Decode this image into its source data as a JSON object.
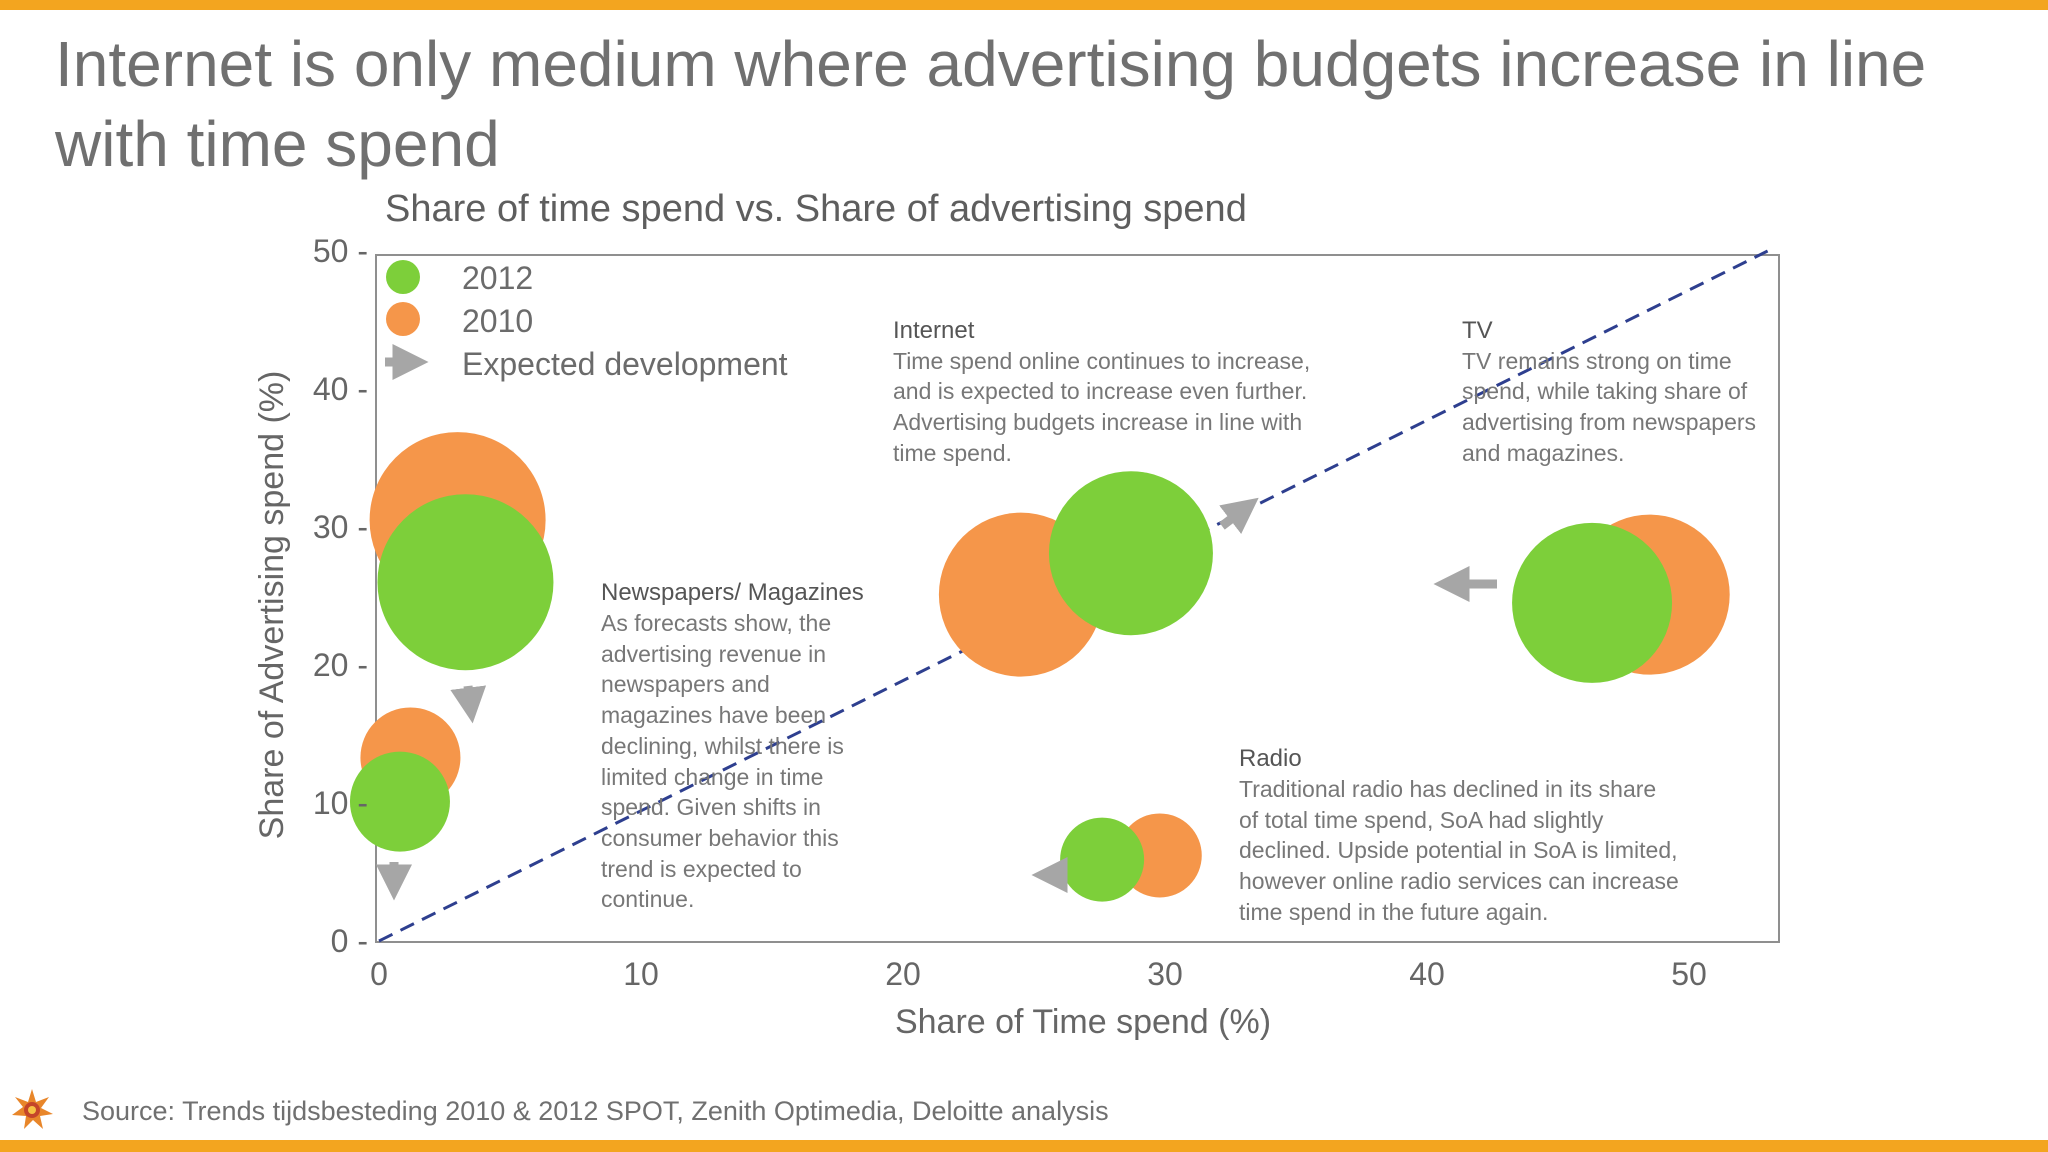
{
  "slide": {
    "title": "Internet is only medium where advertising budgets increase in line with time spend",
    "source": "Source: Trends tijdsbesteding 2010 & 2012 SPOT, Zenith Optimedia, Deloitte analysis"
  },
  "colors": {
    "accent_bar": "#f3a51f",
    "series_2012": "#7dcf3a",
    "series_2010": "#f5964a",
    "arrow": "#a6a6a6",
    "trend_line": "#2e3f8f"
  },
  "chart_data": {
    "type": "scatter",
    "title": "Share of time spend vs. Share of advertising spend",
    "xlabel": "Share of Time spend (%)",
    "ylabel": "Share of Advertising spend (%)",
    "xlim": [
      0,
      53
    ],
    "ylim": [
      0,
      50
    ],
    "x_ticks": [
      "0",
      "10",
      "20",
      "30",
      "40",
      "50"
    ],
    "y_ticks": [
      "0 -",
      "10 -",
      "20 -",
      "30 -",
      "40 -",
      "50 -"
    ],
    "grid": false,
    "legend_position": "top-left",
    "legend": {
      "series_2012": "2012",
      "series_2010": "2010",
      "expected": "Expected development"
    },
    "trend_line": {
      "style": "dashed",
      "from": [
        0,
        0
      ],
      "to": [
        53,
        50
      ]
    },
    "series": [
      {
        "name": "2010",
        "points": [
          {
            "medium": "Newspapers/ Magazines",
            "x": 3,
            "y": 30.5
          },
          {
            "medium": "Radio (top-left)",
            "x": 1.2,
            "y": 13.3
          },
          {
            "medium": "Internet",
            "x": 24.5,
            "y": 25.1
          },
          {
            "medium": "TV",
            "x": 48.5,
            "y": 25.1
          },
          {
            "medium": "Radio",
            "x": 29.8,
            "y": 6.2
          }
        ]
      },
      {
        "name": "2012",
        "points": [
          {
            "medium": "Newspapers/ Magazines",
            "x": 3.3,
            "y": 26.0
          },
          {
            "medium": "Radio (top-left)",
            "x": 0.8,
            "y": 10.1
          },
          {
            "medium": "Internet",
            "x": 28.7,
            "y": 28.1
          },
          {
            "medium": "TV",
            "x": 46.3,
            "y": 24.5
          },
          {
            "medium": "Radio",
            "x": 27.6,
            "y": 5.9
          }
        ]
      }
    ],
    "annotations": [
      {
        "title": "Internet",
        "lines": [
          "Time spend online continues to increase,",
          "and is expected to increase even further.",
          "Advertising budgets increase in line with",
          "time spend."
        ]
      },
      {
        "title": "TV",
        "lines": [
          "TV remains strong on time",
          "spend, while taking share of",
          "advertising from newspapers",
          "and magazines."
        ]
      },
      {
        "title": "Newspapers/ Magazines",
        "lines": [
          "As forecasts show, the",
          "advertising revenue in",
          "newspapers and",
          "magazines have been",
          "declining, whilst there is",
          "limited change in time",
          "spend. Given shifts in",
          "consumer behavior this",
          "trend is expected to",
          "continue."
        ]
      },
      {
        "title": "Radio",
        "lines": [
          "Traditional radio has declined in its share",
          "of total time spend, SoA had slightly",
          "declined. Upside potential in SoA is limited,",
          "however online radio services can increase",
          "time spend in the future again."
        ]
      }
    ]
  }
}
